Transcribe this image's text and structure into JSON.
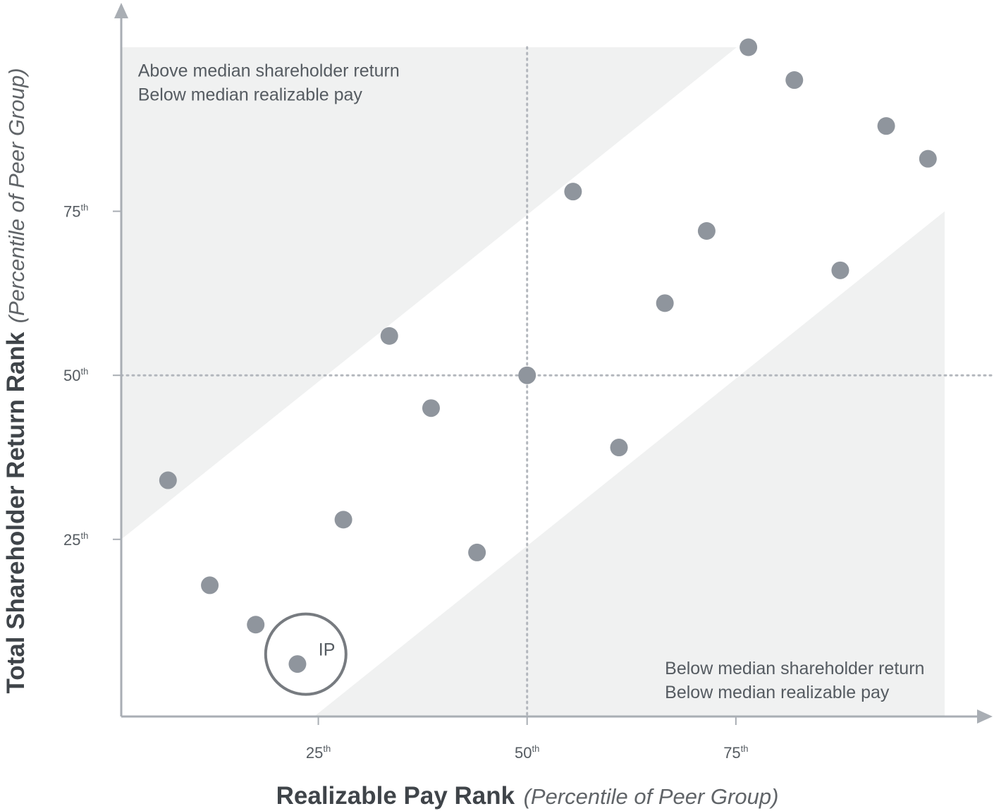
{
  "chart_data": {
    "type": "scatter",
    "xlabel": "Realizable Pay Rank",
    "xlabel_note": "(Percentile of Peer Group)",
    "ylabel": "Total Shareholder Return Rank",
    "ylabel_note": "(Percentile of Peer Group)",
    "xlim": [
      1.4,
      105
    ],
    "ylim": [
      -2,
      94
    ],
    "x_ticks": [
      {
        "value": 25,
        "label": "25",
        "suffix": "th"
      },
      {
        "value": 50,
        "label": "50",
        "suffix": "th"
      },
      {
        "value": 75,
        "label": "75",
        "suffix": "th"
      }
    ],
    "y_ticks": [
      {
        "value": 25,
        "label": "25",
        "suffix": "th"
      },
      {
        "value": 50,
        "label": "50",
        "suffix": "th"
      },
      {
        "value": 75,
        "label": "75",
        "suffix": "th"
      }
    ],
    "median_lines": {
      "x": 50,
      "y": 50
    },
    "band_lines": {
      "upper": {
        "from": [
          1.4,
          25
        ],
        "to": [
          75.1,
          100
        ]
      },
      "lower": {
        "from": [
          25,
          -2
        ],
        "to": [
          100,
          75
        ]
      }
    },
    "shaded_regions": [
      {
        "name": "upper-left",
        "polygon": [
          [
            1.4,
            25
          ],
          [
            1.4,
            100
          ],
          [
            75.1,
            100
          ]
        ]
      },
      {
        "name": "lower-right",
        "polygon": [
          [
            24.5,
            -2
          ],
          [
            100,
            75
          ],
          [
            100,
            -2
          ]
        ]
      }
    ],
    "annotations": [
      {
        "name": "upper-left-note",
        "lines": [
          "Above median shareholder return",
          "Below median realizable pay"
        ],
        "x": 3.4,
        "y": 96.5
      },
      {
        "name": "lower-right-note",
        "lines": [
          "Below median shareholder return",
          "Below median realizable pay"
        ],
        "x": 66.5,
        "y": 5.4
      }
    ],
    "highlight": {
      "label": "IP",
      "x": 23.5,
      "y": 7.5,
      "radius": 57
    },
    "points": [
      {
        "x": 7,
        "y": 34
      },
      {
        "x": 12,
        "y": 18
      },
      {
        "x": 17.5,
        "y": 12
      },
      {
        "x": 22.5,
        "y": 6
      },
      {
        "x": 28,
        "y": 28
      },
      {
        "x": 33.5,
        "y": 56
      },
      {
        "x": 38.5,
        "y": 45
      },
      {
        "x": 44,
        "y": 23
      },
      {
        "x": 50,
        "y": 50
      },
      {
        "x": 55.5,
        "y": 78
      },
      {
        "x": 61,
        "y": 39
      },
      {
        "x": 66.5,
        "y": 61
      },
      {
        "x": 71.5,
        "y": 72
      },
      {
        "x": 76.5,
        "y": 100
      },
      {
        "x": 82,
        "y": 95
      },
      {
        "x": 87.5,
        "y": 66
      },
      {
        "x": 93,
        "y": 88
      },
      {
        "x": 98,
        "y": 83
      }
    ],
    "colors": {
      "point": "#8f959d",
      "shade": "#f0f1f1",
      "axis": "#a9aeb4",
      "median": "#b3b7bd",
      "circle": "#777b80"
    }
  }
}
